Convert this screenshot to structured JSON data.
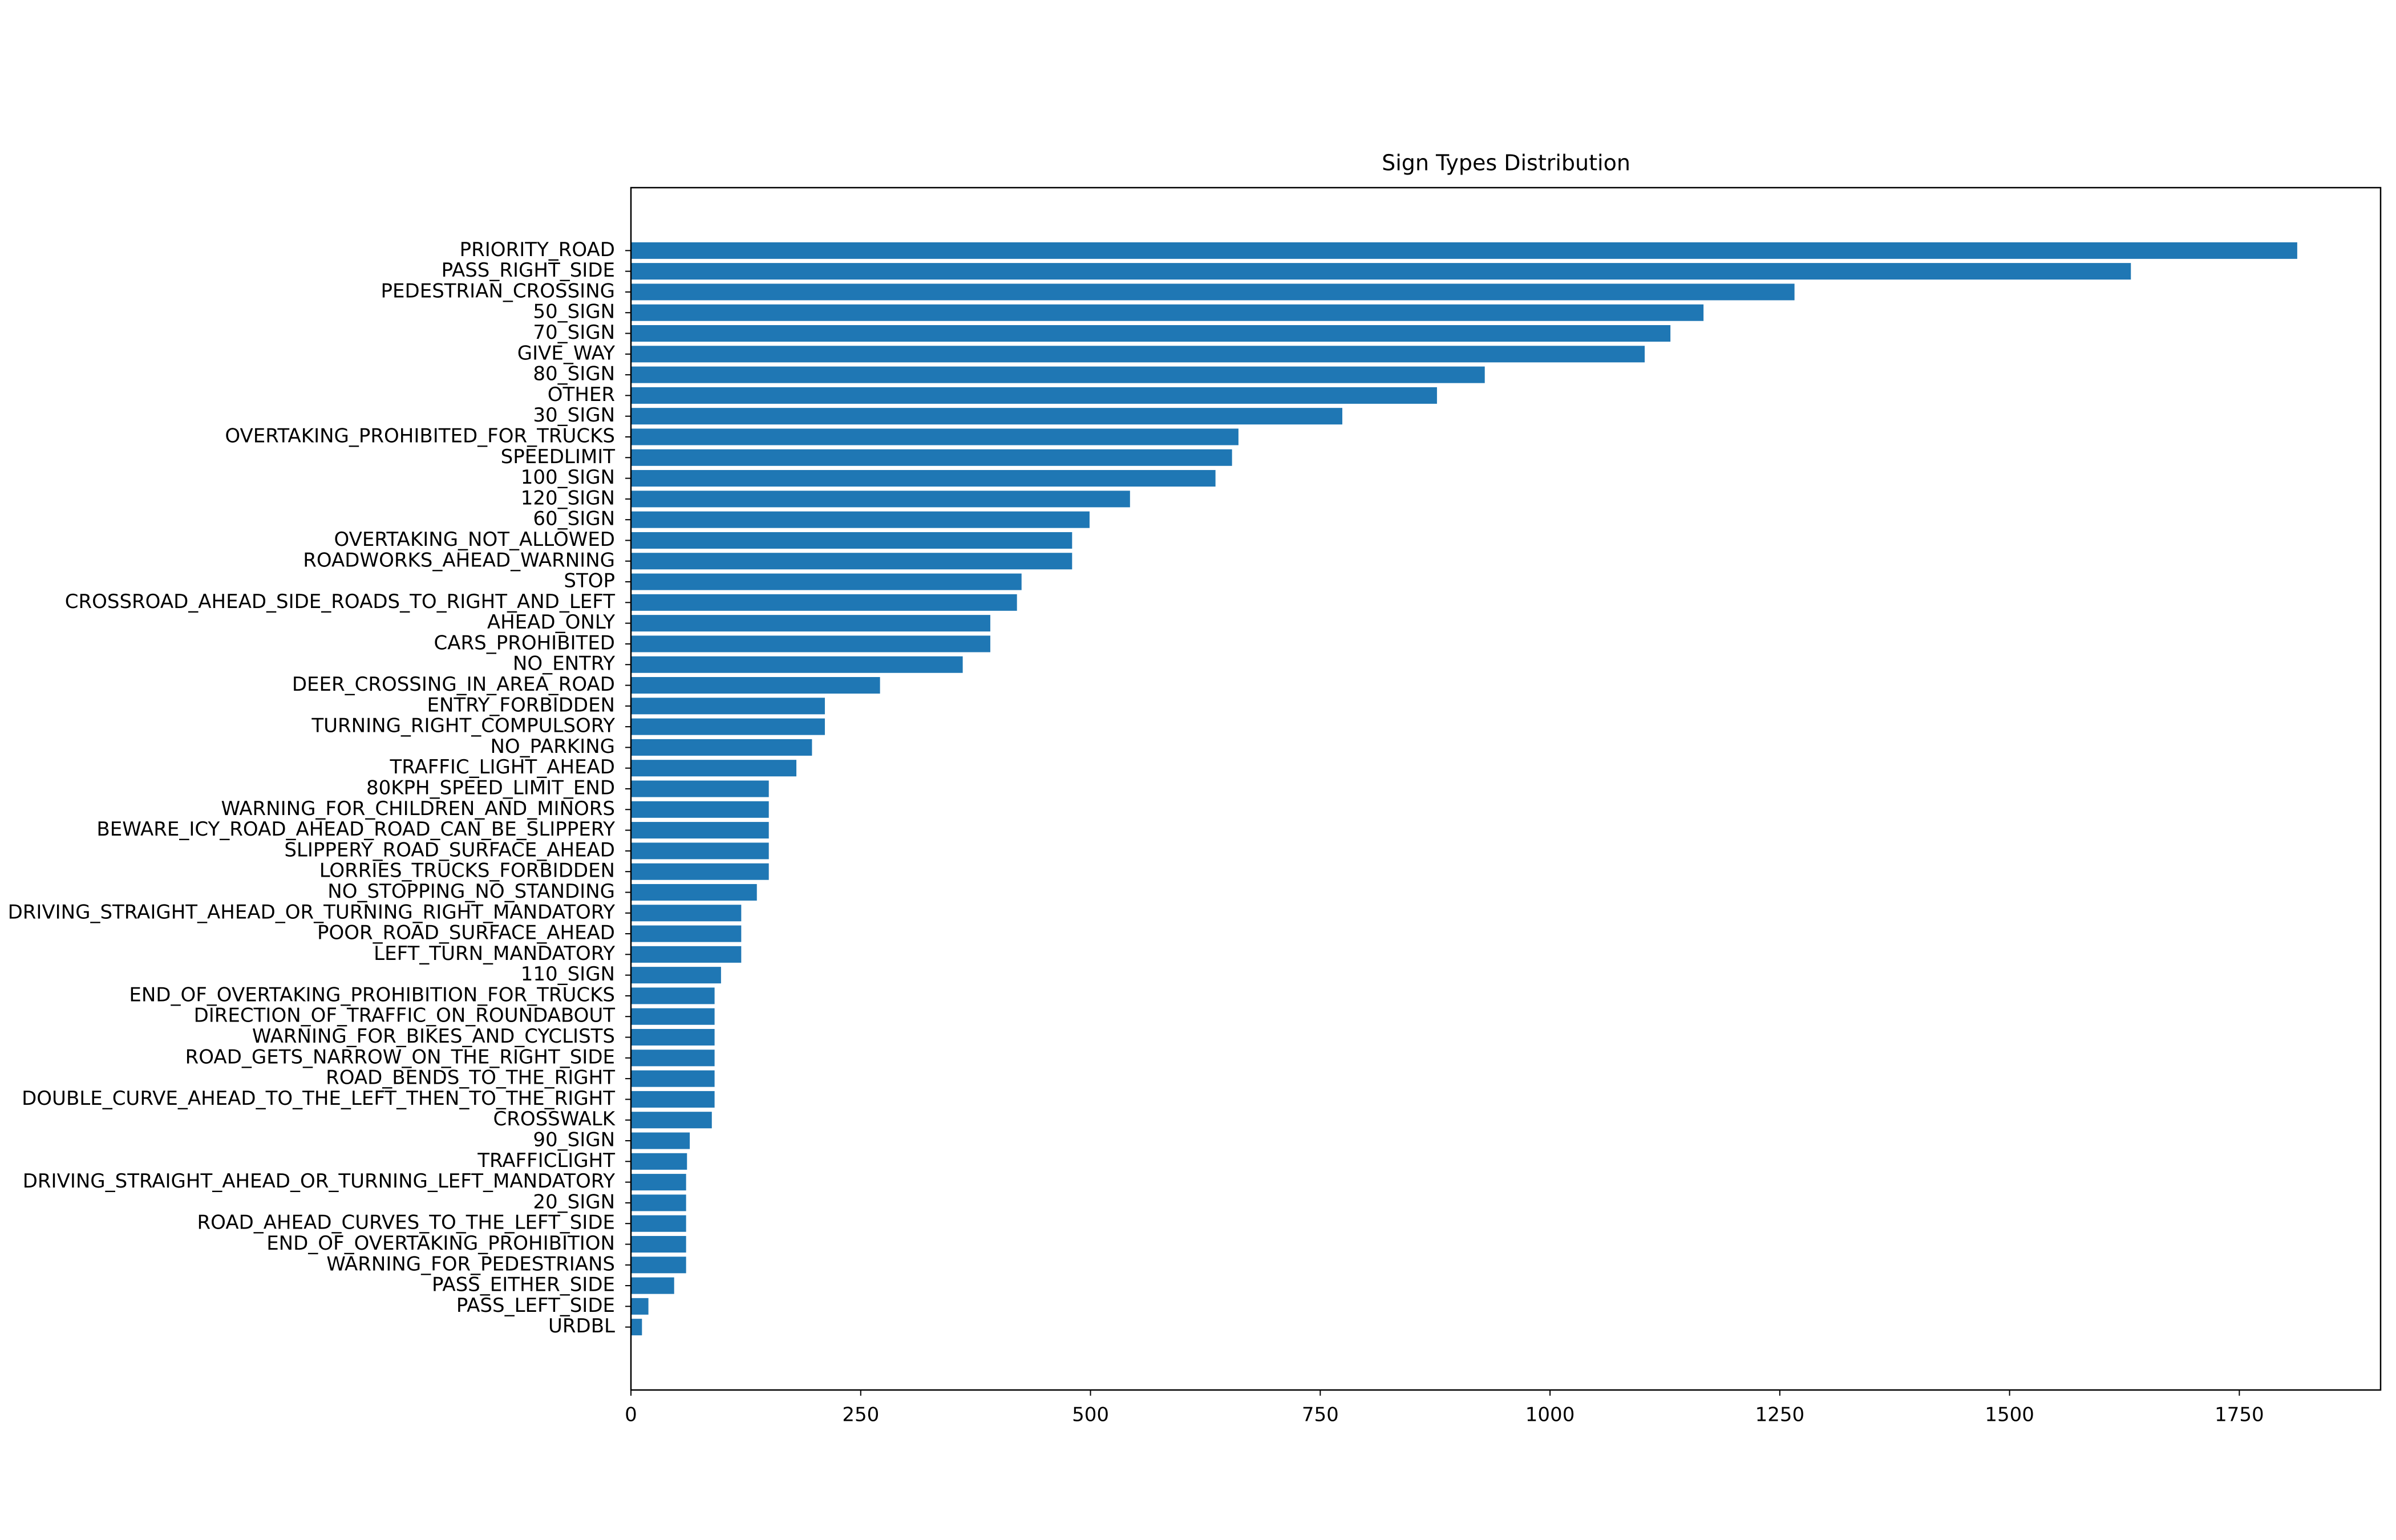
{
  "chart_data": {
    "type": "barh",
    "title": "Sign Types Distribution",
    "categories": [
      "PRIORITY_ROAD",
      "PASS_RIGHT_SIDE",
      "PEDESTRIAN_CROSSING",
      "50_SIGN",
      "70_SIGN",
      "GIVE_WAY",
      "80_SIGN",
      "OTHER",
      "30_SIGN",
      "OVERTAKING_PROHIBITED_FOR_TRUCKS",
      "SPEEDLIMIT",
      "100_SIGN",
      "120_SIGN",
      "60_SIGN",
      "OVERTAKING_NOT_ALLOWED",
      "ROADWORKS_AHEAD_WARNING",
      "STOP",
      "CROSSROAD_AHEAD_SIDE_ROADS_TO_RIGHT_AND_LEFT",
      "AHEAD_ONLY",
      "CARS_PROHIBITED",
      "NO_ENTRY",
      "DEER_CROSSING_IN_AREA_ROAD",
      "ENTRY_FORBIDDEN",
      "TURNING_RIGHT_COMPULSORY",
      "NO_PARKING",
      "TRAFFIC_LIGHT_AHEAD",
      "80KPH_SPEED_LIMIT_END",
      "WARNING_FOR_CHILDREN_AND_MINORS",
      "BEWARE_ICY_ROAD_AHEAD_ROAD_CAN_BE_SLIPPERY",
      "SLIPPERY_ROAD_SURFACE_AHEAD",
      "LORRIES_TRUCKS_FORBIDDEN",
      "NO_STOPPING_NO_STANDING",
      "DRIVING_STRAIGHT_AHEAD_OR_TURNING_RIGHT_MANDATORY",
      "POOR_ROAD_SURFACE_AHEAD",
      "LEFT_TURN_MANDATORY",
      "110_SIGN",
      "END_OF_OVERTAKING_PROHIBITION_FOR_TRUCKS",
      "DIRECTION_OF_TRAFFIC_ON_ROUNDABOUT",
      "WARNING_FOR_BIKES_AND_CYCLISTS",
      "ROAD_GETS_NARROW_ON_THE_RIGHT_SIDE",
      "ROAD_BENDS_TO_THE_RIGHT",
      "DOUBLE_CURVE_AHEAD_TO_THE_LEFT_THEN_TO_THE_RIGHT",
      "CROSSWALK",
      "90_SIGN",
      "TRAFFICLIGHT",
      "DRIVING_STRAIGHT_AHEAD_OR_TURNING_LEFT_MANDATORY",
      "20_SIGN",
      "ROAD_AHEAD_CURVES_TO_THE_LEFT_SIDE",
      "END_OF_OVERTAKING_PROHIBITION",
      "WARNING_FOR_PEDESTRIANS",
      "PASS_EITHER_SIDE",
      "PASS_LEFT_SIDE",
      "URDBL"
    ],
    "values": [
      1813,
      1632,
      1266,
      1167,
      1131,
      1103,
      929,
      877,
      774,
      661,
      654,
      636,
      543,
      499,
      480,
      480,
      425,
      420,
      391,
      391,
      361,
      271,
      211,
      211,
      197,
      180,
      150,
      150,
      150,
      150,
      150,
      137,
      120,
      120,
      120,
      98,
      91,
      91,
      91,
      91,
      91,
      91,
      88,
      64,
      61,
      60,
      60,
      60,
      60,
      60,
      47,
      19,
      12
    ],
    "color": "#1f77b4",
    "xlim": [
      0,
      1903.7
    ],
    "xticks": [
      0,
      250,
      500,
      750,
      1000,
      1250,
      1500,
      1750
    ]
  }
}
